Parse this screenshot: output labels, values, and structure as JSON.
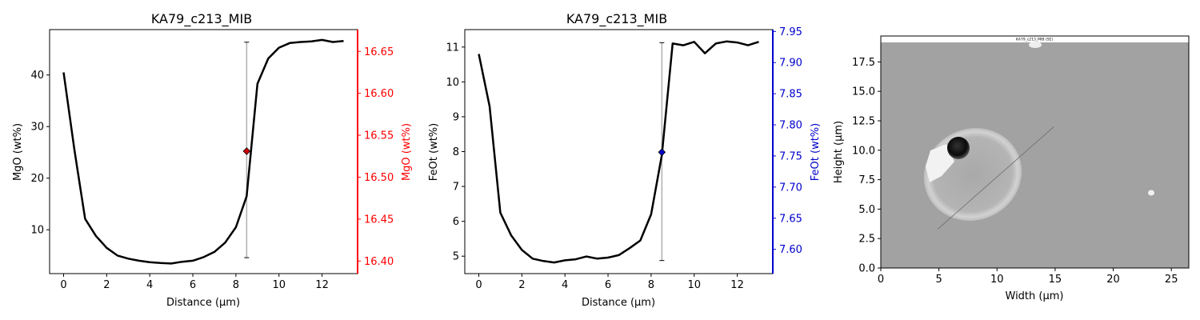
{
  "colors": {
    "line": "#000000",
    "mgo_axis": "#ff0000",
    "feo_axis": "#0000cc",
    "errorbar": "#b0b0b0"
  },
  "chart_data": [
    {
      "type": "line",
      "title": "KA79_c213_MIB",
      "xlabel": "Distance (µm)",
      "ylabel": "MgO (wt%)",
      "ylabel_right": "MgO (wt%)",
      "xlim": [
        -0.65,
        13.65
      ],
      "ylim": [
        1.5,
        48.8
      ],
      "ylim_right": [
        16.385,
        16.676
      ],
      "xticks": [
        0,
        2,
        4,
        6,
        8,
        10,
        12
      ],
      "yticks": [
        10,
        20,
        30,
        40
      ],
      "yticks_right": [
        "16.40",
        "16.45",
        "16.50",
        "16.55",
        "16.60",
        "16.65"
      ],
      "yticks_right_values": [
        16.4,
        16.45,
        16.5,
        16.55,
        16.6,
        16.65
      ],
      "x": [
        0,
        0.5,
        1,
        1.5,
        2,
        2.5,
        3,
        3.5,
        4,
        4.5,
        5,
        5.5,
        6,
        6.5,
        7,
        7.5,
        8,
        8.5,
        9,
        9.5,
        10,
        10.5,
        11,
        11.5,
        12,
        12.5,
        13
      ],
      "y": [
        40.5,
        25.5,
        12.1,
        8.8,
        6.5,
        5.0,
        4.4,
        4.0,
        3.7,
        3.55,
        3.45,
        3.8,
        4.0,
        4.7,
        5.7,
        7.5,
        10.5,
        16.5,
        38.3,
        43.2,
        45.3,
        46.2,
        46.4,
        46.5,
        46.8,
        46.4,
        46.6
      ],
      "right_point": {
        "x": 8.5,
        "value": 16.531,
        "err_low": 16.404,
        "err_high": 16.661
      }
    },
    {
      "type": "line",
      "title": "KA79_c213_MIB",
      "xlabel": "Distance (µm)",
      "ylabel": "FeOt (wt%)",
      "ylabel_right": "FeOt (wt%)",
      "xlim": [
        -0.65,
        13.65
      ],
      "ylim": [
        4.5,
        11.5
      ],
      "ylim_right": [
        7.561,
        7.953
      ],
      "xticks": [
        0,
        2,
        4,
        6,
        8,
        10,
        12
      ],
      "yticks": [
        5,
        6,
        7,
        8,
        9,
        10,
        11
      ],
      "yticks_right": [
        "7.60",
        "7.65",
        "7.70",
        "7.75",
        "7.80",
        "7.85",
        "7.90",
        "7.95"
      ],
      "yticks_right_values": [
        7.6,
        7.65,
        7.7,
        7.75,
        7.8,
        7.85,
        7.9,
        7.95
      ],
      "x": [
        0,
        0.5,
        1,
        1.5,
        2,
        2.5,
        3,
        3.5,
        4,
        4.5,
        5,
        5.5,
        6,
        6.5,
        7,
        7.5,
        8,
        8.5,
        9,
        9.5,
        10,
        10.5,
        11,
        11.5,
        12,
        12.5,
        13
      ],
      "y": [
        10.8,
        9.3,
        6.25,
        5.6,
        5.18,
        4.93,
        4.86,
        4.82,
        4.88,
        4.91,
        4.99,
        4.93,
        4.96,
        5.03,
        5.23,
        5.45,
        6.2,
        7.9,
        11.1,
        11.05,
        11.15,
        10.82,
        11.1,
        11.16,
        11.13,
        11.05,
        11.15
      ],
      "right_point": {
        "x": 8.5,
        "value": 7.756,
        "err_low": 7.582,
        "err_high": 7.932
      }
    },
    {
      "type": "image",
      "xlabel": "Width (µm)",
      "ylabel": "Height (µm)",
      "xlim": [
        0,
        26.5
      ],
      "ylim": [
        0,
        19.7
      ],
      "xticks": [
        0,
        5,
        10,
        15,
        20,
        25
      ],
      "yticks": [
        "0.0",
        "2.5",
        "5.0",
        "7.5",
        "10.0",
        "12.5",
        "15.0",
        "17.5"
      ],
      "yticks_values": [
        0,
        2.5,
        5,
        7.5,
        10,
        12.5,
        15,
        17.5
      ],
      "image_caption": "KA79_c213_MIB (SE)",
      "transect": {
        "x1": 4.9,
        "y1": 3.3,
        "x2": 14.9,
        "y2": 12.0
      }
    }
  ]
}
